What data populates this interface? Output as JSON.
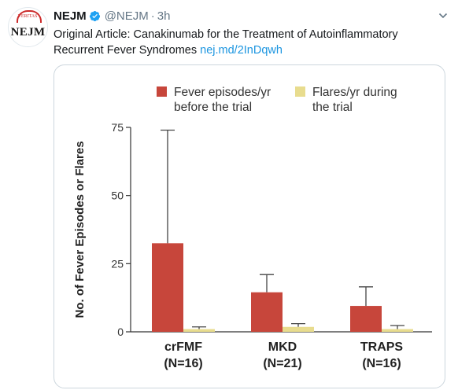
{
  "tweet": {
    "author_name": "NEJM",
    "handle": "@NEJM",
    "separator": "·",
    "time": "3h",
    "text": "Original Article: Canakinumab for the Treatment of Autoinflammatory Recurrent Fever Syndromes",
    "link_text": "nej.md/2InDqwh",
    "avatar_text": "NEJM",
    "avatar_seal": "VERITAS",
    "icons": {
      "verified": "verified-badge-icon",
      "menu": "chevron-down-icon"
    },
    "colors": {
      "link": "#1b95e0",
      "verified": "#1da1f2",
      "secondary_text": "#657786"
    }
  },
  "chart_data": {
    "type": "bar",
    "title": "",
    "ylabel": "No. of Fever Episodes or Flares",
    "xlabel": "",
    "ylim": [
      0,
      75
    ],
    "yticks": [
      0,
      25,
      50,
      75
    ],
    "categories": [
      {
        "name": "crFMF",
        "n": "(N=16)"
      },
      {
        "name": "MKD",
        "n": "(N=21)"
      },
      {
        "name": "TRAPS",
        "n": "(N=16)"
      }
    ],
    "series": [
      {
        "name": "Fever episodes/yr before the trial",
        "legend_lines": [
          "Fever episodes/yr",
          "before the trial"
        ],
        "color": "#c7463b",
        "values": [
          32.5,
          14.5,
          9.5
        ],
        "error_upper": [
          74,
          21,
          16.5
        ]
      },
      {
        "name": "Flares/yr during the trial",
        "legend_lines": [
          "Flares/yr during",
          "the trial"
        ],
        "color": "#e8dc8e",
        "values": [
          1.0,
          1.8,
          1.0
        ],
        "error_upper": [
          1.8,
          3.0,
          2.3
        ]
      }
    ],
    "legend_position": "top",
    "grid": false
  }
}
